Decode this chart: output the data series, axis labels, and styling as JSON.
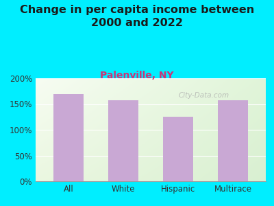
{
  "title": "Change in per capita income between\n2000 and 2022",
  "subtitle": "Palenville, NY",
  "categories": [
    "All",
    "White",
    "Hispanic",
    "Multirace"
  ],
  "values": [
    170,
    157,
    126,
    157
  ],
  "bar_color": "#c9a8d4",
  "title_fontsize": 11.5,
  "subtitle_fontsize": 10,
  "title_color": "#1a1a1a",
  "subtitle_color": "#cc3377",
  "background_color": "#00eeff",
  "plot_bg_gradient_top_left": "#f0f8e8",
  "plot_bg_gradient_bottom": "#e8f5d0",
  "ylim": [
    0,
    200
  ],
  "yticks": [
    0,
    50,
    100,
    150,
    200
  ],
  "watermark": "City-Data.com",
  "watermark_color": "#aaaaaa"
}
